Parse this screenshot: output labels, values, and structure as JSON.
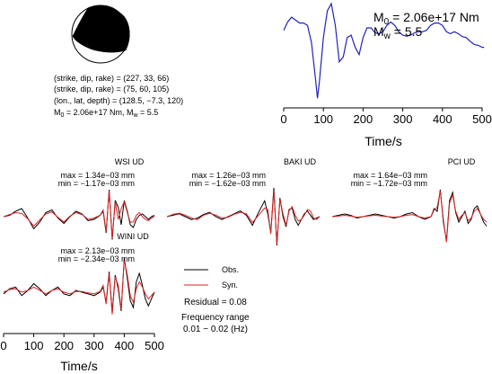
{
  "colors": {
    "stf": "#2222bb",
    "observed": "#000000",
    "synthetic": "#dd2222",
    "mechanism_fill": "#000000"
  },
  "mechanism": {
    "lines": [
      "(strike, dip, rake) = (227, 33, 66)",
      "(strike, dip, rake) = (75, 60, 105)",
      "(lon., lat, depth) = (128.5, −7.3, 120)"
    ],
    "m0_line": {
      "prefix": "M",
      "sub": "0",
      "text": " = 2.06e+17 Nm, M",
      "sub2": "w",
      "tail": " = 5.5"
    }
  },
  "stf_label": {
    "m0": {
      "prefix": "M",
      "sub": "0",
      "text": " = 2.06e+17 Nm"
    },
    "mw": {
      "prefix": "M",
      "sub": "w",
      "text": " = 5.5"
    }
  },
  "legend": {
    "obs": "Obs.",
    "syn": "Syn.",
    "residual": "Residual = 0.08",
    "freq_title": "Frequency range",
    "freq_range": "0.01 − 0.02 (Hz)"
  },
  "chart_data": [
    {
      "type": "line",
      "id": "source-time-function",
      "xlabel": "Time/s",
      "xlim": [
        0,
        500
      ],
      "xticks": [
        0,
        100,
        200,
        300,
        400,
        500
      ],
      "series": [
        {
          "x": [
            0,
            10,
            20,
            30,
            40,
            50,
            60,
            70,
            80,
            85,
            90,
            100,
            110,
            120,
            130,
            140,
            150,
            160,
            170,
            180,
            190,
            200,
            210,
            220,
            230,
            240,
            250,
            260,
            270,
            280,
            290,
            300,
            310,
            320,
            330,
            340,
            350,
            360,
            370,
            380,
            390,
            400,
            410,
            420,
            430,
            440,
            450,
            460,
            470,
            480,
            490,
            500,
            505
          ],
          "y": [
            0.45,
            0.62,
            0.72,
            0.66,
            0.6,
            0.6,
            0.55,
            0.2,
            -0.55,
            -0.95,
            -0.6,
            0.3,
            0.85,
            1.0,
            0.55,
            -0.2,
            -0.1,
            0.3,
            0.35,
            0.1,
            -0.05,
            0.3,
            0.5,
            0.5,
            0.4,
            0.38,
            0.42,
            0.55,
            0.62,
            0.55,
            0.42,
            0.35,
            0.33,
            0.35,
            0.4,
            0.42,
            0.42,
            0.45,
            0.55,
            0.6,
            0.6,
            0.55,
            0.42,
            0.38,
            0.42,
            0.38,
            0.32,
            0.3,
            0.22,
            0.16,
            0.14,
            0.1,
            0.1
          ]
        }
      ]
    },
    {
      "type": "line",
      "id": "wsi",
      "title": "WSI UD",
      "max": "max = 1.34e−03 mm",
      "min": "min = −1.17e−03 mm",
      "xlim": [
        0,
        500
      ],
      "series": [
        {
          "name": "Obs.",
          "x": [
            0,
            20,
            40,
            60,
            80,
            100,
            120,
            140,
            160,
            180,
            200,
            220,
            240,
            260,
            280,
            300,
            320,
            330,
            340,
            350,
            360,
            370,
            380,
            390,
            400,
            410,
            420,
            430,
            440,
            450,
            460,
            470,
            480,
            490,
            500
          ],
          "y": [
            0.0,
            0.05,
            0.2,
            0.3,
            -0.05,
            -0.45,
            -0.2,
            0.15,
            0.25,
            -0.05,
            -0.25,
            0.0,
            0.2,
            0.1,
            -0.15,
            -0.1,
            0.05,
            0.2,
            -0.6,
            1.0,
            -0.85,
            0.6,
            0.35,
            -0.3,
            0.6,
            0.2,
            -0.3,
            -0.4,
            -0.1,
            0.05,
            0.1,
            0.0,
            -0.1,
            0.0,
            0.05
          ]
        },
        {
          "name": "Syn.",
          "x": [
            0,
            20,
            40,
            60,
            80,
            100,
            120,
            140,
            160,
            180,
            200,
            220,
            240,
            260,
            280,
            300,
            320,
            330,
            340,
            350,
            360,
            370,
            380,
            390,
            400,
            410,
            420,
            430,
            440,
            450,
            460,
            470,
            480,
            490,
            500
          ],
          "y": [
            0.0,
            0.08,
            0.15,
            0.12,
            -0.08,
            -0.35,
            -0.12,
            0.1,
            0.18,
            -0.02,
            -0.2,
            0.02,
            0.15,
            0.08,
            -0.1,
            -0.05,
            0.05,
            0.25,
            -0.55,
            0.95,
            -0.8,
            0.55,
            -0.1,
            0.3,
            0.55,
            0.15,
            -0.2,
            -0.2,
            0.05,
            0.15,
            0.0,
            -0.1,
            -0.15,
            -0.05,
            0.0
          ]
        }
      ]
    },
    {
      "type": "line",
      "id": "baki",
      "title": "BAKI UD",
      "max": "max = 1.26e−03 mm",
      "min": "min = −1.62e−03 mm",
      "xlim": [
        0,
        500
      ],
      "series": [
        {
          "name": "Obs.",
          "x": [
            0,
            20,
            40,
            60,
            80,
            100,
            120,
            140,
            160,
            180,
            200,
            220,
            240,
            260,
            280,
            300,
            320,
            330,
            340,
            350,
            360,
            370,
            380,
            390,
            400,
            410,
            420,
            430,
            440,
            450,
            460,
            470,
            480,
            490,
            500
          ],
          "y": [
            0.0,
            0.05,
            0.1,
            0.0,
            -0.1,
            -0.05,
            0.08,
            0.15,
            0.0,
            -0.1,
            0.0,
            0.1,
            0.2,
            0.05,
            -0.3,
            0.15,
            0.55,
            0.1,
            -0.55,
            1.0,
            -1.0,
            0.65,
            0.0,
            -0.35,
            0.25,
            0.3,
            -0.1,
            -0.3,
            -0.1,
            0.1,
            0.2,
            0.05,
            -0.1,
            -0.05,
            0.0
          ]
        },
        {
          "name": "Syn.",
          "x": [
            0,
            20,
            40,
            60,
            80,
            100,
            120,
            140,
            160,
            180,
            200,
            220,
            240,
            260,
            280,
            300,
            320,
            330,
            340,
            350,
            360,
            370,
            380,
            390,
            400,
            410,
            420,
            430,
            440,
            450,
            460,
            470,
            480,
            490,
            500
          ],
          "y": [
            0.0,
            0.08,
            0.12,
            0.05,
            -0.05,
            -0.1,
            0.05,
            0.12,
            0.05,
            -0.05,
            -0.02,
            0.08,
            0.15,
            0.1,
            -0.2,
            0.05,
            0.3,
            0.25,
            -0.6,
            0.9,
            -0.95,
            0.6,
            0.1,
            -0.3,
            0.2,
            0.35,
            0.05,
            -0.15,
            -0.1,
            0.05,
            0.25,
            0.2,
            -0.05,
            -0.1,
            0.0
          ]
        }
      ]
    },
    {
      "type": "line",
      "id": "pci",
      "title": "PCI UD",
      "max": "max = 1.64e−03 mm",
      "min": "min = −1.72e−03 mm",
      "xlim": [
        0,
        500
      ],
      "series": [
        {
          "name": "Obs.",
          "x": [
            0,
            20,
            40,
            60,
            80,
            100,
            120,
            140,
            160,
            180,
            200,
            220,
            240,
            260,
            280,
            300,
            320,
            330,
            340,
            350,
            360,
            370,
            380,
            390,
            400,
            410,
            420,
            430,
            440,
            450,
            460,
            470,
            480,
            490,
            500
          ],
          "y": [
            0.0,
            0.05,
            0.1,
            0.05,
            -0.05,
            0.0,
            0.05,
            0.1,
            0.05,
            0.0,
            -0.05,
            0.0,
            0.1,
            0.15,
            0.0,
            -0.1,
            0.0,
            0.3,
            0.2,
            1.0,
            -0.2,
            -0.9,
            0.6,
            0.9,
            0.15,
            -0.2,
            0.0,
            0.2,
            -0.25,
            -0.1,
            0.3,
            0.4,
            0.1,
            -0.2,
            -0.35
          ]
        },
        {
          "name": "Syn.",
          "x": [
            0,
            20,
            40,
            60,
            80,
            100,
            120,
            140,
            160,
            180,
            200,
            220,
            240,
            260,
            280,
            300,
            320,
            330,
            340,
            350,
            360,
            370,
            380,
            390,
            400,
            410,
            420,
            430,
            440,
            450,
            460,
            470,
            480,
            490,
            500
          ],
          "y": [
            0.0,
            0.02,
            0.05,
            0.02,
            -0.02,
            0.0,
            0.03,
            0.05,
            0.02,
            0.0,
            -0.02,
            0.0,
            0.05,
            0.08,
            0.0,
            -0.05,
            0.0,
            0.25,
            0.35,
            0.95,
            -0.1,
            -0.95,
            0.5,
            0.8,
            0.2,
            -0.1,
            0.05,
            0.15,
            -0.15,
            -0.05,
            0.2,
            0.3,
            0.1,
            -0.1,
            -0.2
          ]
        }
      ]
    },
    {
      "type": "line",
      "id": "wini",
      "title": "WINI UD",
      "max": "max = 2.13e−03 mm",
      "min": "min = −2.34e−03 mm",
      "xlabel": "Time/s",
      "xlim": [
        0,
        500
      ],
      "xticks": [
        0,
        100,
        200,
        300,
        400,
        500
      ],
      "series": [
        {
          "name": "Obs.",
          "x": [
            0,
            20,
            40,
            60,
            80,
            100,
            120,
            140,
            160,
            180,
            200,
            220,
            240,
            260,
            280,
            300,
            320,
            330,
            340,
            350,
            360,
            370,
            380,
            390,
            400,
            410,
            420,
            430,
            440,
            450,
            460,
            470,
            480,
            490,
            500
          ],
          "y": [
            -0.05,
            0.1,
            0.15,
            -0.1,
            0.05,
            0.25,
            0.1,
            -0.1,
            0.05,
            0.15,
            -0.05,
            -0.1,
            0.05,
            0.0,
            -0.05,
            -0.1,
            0.0,
            0.15,
            -0.3,
            0.6,
            -0.6,
            0.5,
            0.1,
            -0.55,
            1.0,
            0.4,
            -0.25,
            -0.45,
            0.3,
            0.55,
            0.2,
            -0.2,
            -0.4,
            -0.2,
            0.0
          ]
        },
        {
          "name": "Syn.",
          "x": [
            0,
            20,
            40,
            60,
            80,
            100,
            120,
            140,
            160,
            180,
            200,
            220,
            240,
            260,
            280,
            300,
            320,
            330,
            340,
            350,
            360,
            370,
            380,
            390,
            400,
            410,
            420,
            430,
            440,
            450,
            460,
            470,
            480,
            490,
            500
          ],
          "y": [
            0.0,
            0.08,
            0.1,
            0.0,
            0.05,
            0.15,
            0.05,
            -0.05,
            0.05,
            0.1,
            0.0,
            -0.05,
            0.02,
            0.02,
            -0.02,
            -0.05,
            0.02,
            0.2,
            -0.35,
            0.55,
            -0.65,
            0.45,
            0.2,
            -0.5,
            0.95,
            0.5,
            -0.1,
            -0.3,
            0.1,
            0.3,
            0.15,
            -0.05,
            -0.2,
            -0.1,
            0.0
          ]
        }
      ]
    }
  ]
}
